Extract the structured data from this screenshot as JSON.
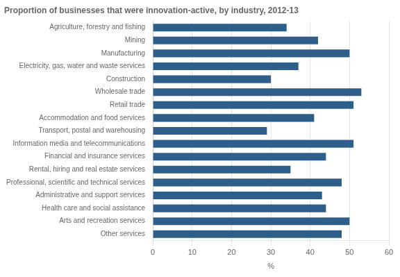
{
  "chart_data": {
    "type": "bar",
    "orientation": "horizontal",
    "title": "Proportion of businesses that were innovation-active, by industry, 2012-13",
    "categories": [
      "Agriculture, forestry and fishing",
      "Mining",
      "Manufacturing",
      "Electricity, gas, water and waste services",
      "Construction",
      "Wholesale trade",
      "Retail trade",
      "Accommodation and food services",
      "Transport, postal and warehousing",
      "Information media and telecommunications",
      "Financial and insurance services",
      "Rental, hiring and real estate services",
      "Professional, scientific and technical services",
      "Administrative and support services",
      "Health care and social assistance",
      "Arts and recreation services",
      "Other services"
    ],
    "values": [
      34,
      42,
      50,
      37,
      30,
      53,
      51,
      41,
      29,
      51,
      44,
      35,
      48,
      43,
      44,
      50,
      48
    ],
    "color": "#2E5F8A",
    "xlim": [
      0,
      60
    ],
    "xticks": [
      0,
      10,
      20,
      30,
      40,
      50,
      60
    ],
    "xlabel": "%",
    "grid": true
  }
}
